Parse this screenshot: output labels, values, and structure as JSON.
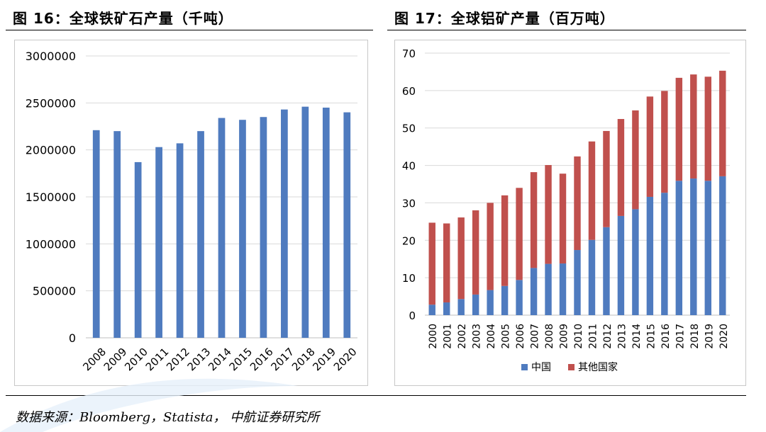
{
  "left_title": "图 16：全球铁矿石产量（千吨）",
  "right_title": "图 17：全球铝矿产量（百万吨）",
  "footer": "数据来源：Bloomberg，Statista， 中航证券研究所",
  "colors": {
    "blue": "#4f7bbf",
    "red": "#c0504d",
    "grid": "#d9d9d9",
    "axis": "#bfbfbf"
  },
  "chart_data": [
    {
      "type": "bar",
      "title": "全球铁矿石产量（千吨）",
      "categories": [
        "2008",
        "2009",
        "2010",
        "2011",
        "2012",
        "2013",
        "2014",
        "2015",
        "2016",
        "2017",
        "2018",
        "2019",
        "2020"
      ],
      "values": [
        2210000,
        2200000,
        1870000,
        2030000,
        2070000,
        2200000,
        2340000,
        2320000,
        2350000,
        2430000,
        2460000,
        2450000,
        2400000
      ],
      "yticks": [
        "0",
        "500000",
        "1000000",
        "1500000",
        "2000000",
        "2500000",
        "3000000"
      ],
      "ylim": [
        0,
        3000000
      ],
      "xlabel": "",
      "ylabel": "",
      "grid": true
    },
    {
      "type": "bar",
      "stacked": true,
      "title": "全球铝矿产量（百万吨）",
      "categories": [
        "2000",
        "2001",
        "2002",
        "2003",
        "2004",
        "2005",
        "2006",
        "2007",
        "2008",
        "2009",
        "2010",
        "2011",
        "2012",
        "2013",
        "2014",
        "2015",
        "2016",
        "2017",
        "2018",
        "2019",
        "2020"
      ],
      "series": [
        {
          "name": "中国",
          "values": [
            2.8,
            3.4,
            4.3,
            5.5,
            6.7,
            7.8,
            9.4,
            12.6,
            13.7,
            13.8,
            17.4,
            20.1,
            23.5,
            26.5,
            28.3,
            31.6,
            32.7,
            35.9,
            36.5,
            35.9,
            37.1
          ]
        },
        {
          "name": "其他国家",
          "values": [
            21.9,
            21.1,
            21.8,
            22.5,
            23.3,
            24.2,
            24.6,
            25.6,
            26.4,
            24.0,
            25.0,
            26.3,
            25.7,
            25.9,
            26.4,
            26.8,
            27.2,
            27.5,
            27.8,
            27.8,
            28.2
          ]
        }
      ],
      "yticks": [
        "0",
        "10",
        "20",
        "30",
        "40",
        "50",
        "60",
        "70"
      ],
      "ylim": [
        0,
        70
      ],
      "legend_position": "bottom",
      "grid": true
    }
  ]
}
